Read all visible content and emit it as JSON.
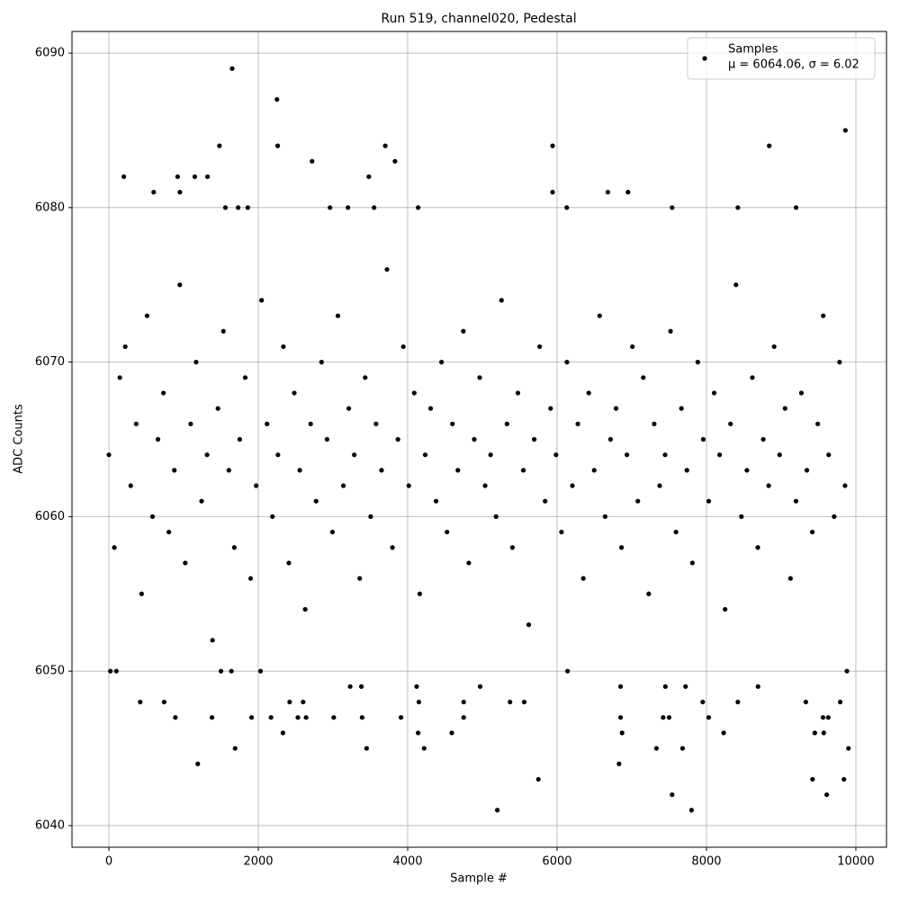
{
  "chart_data": {
    "type": "scatter",
    "title": "Run 519, channel020, Pedestal",
    "xlabel": "Sample #",
    "ylabel": "ADC Counts",
    "xlim": [
      -494,
      10410
    ],
    "ylim": [
      6038.6,
      6091.4
    ],
    "xticks": [
      0,
      2000,
      4000,
      6000,
      8000,
      10000
    ],
    "yticks": [
      6040,
      6050,
      6060,
      6070,
      6080,
      6090
    ],
    "grid": true,
    "legend": "upper right",
    "annotation": "μ = 6064.06, σ = 6.02",
    "series": [
      {
        "name": "Samples",
        "color": "#000000",
        "x": [
          1650,
          2250,
          1480,
          2260,
          3700,
          5940,
          8840,
          9860,
          2720,
          3830,
          200,
          920,
          1150,
          1320,
          3480,
          600,
          950,
          5940,
          6680,
          6950,
          4140,
          1560,
          1730,
          1860,
          2960,
          3200,
          3550,
          6130,
          7540,
          8420,
          9200,
          5200,
          7800,
          5750,
          9420,
          9840,
          1190,
          6830,
          1690,
          3450,
          4220,
          7330,
          7680,
          9900,
          7540,
          9610,
          2330,
          4140,
          4590,
          8230,
          6870,
          9450,
          9570,
          890,
          1380,
          1910,
          2170,
          2530,
          2640,
          3010,
          3390,
          3910,
          4750,
          6850,
          7420,
          7500,
          8030,
          9560,
          9630,
          20,
          100,
          420,
          740,
          1500,
          1640,
          2030,
          2420,
          2600,
          3230,
          3380,
          4120,
          4150,
          4750,
          4970,
          5370,
          5560,
          6140,
          6850,
          7450,
          7720,
          7950,
          8420,
          8690,
          9330,
          9790,
          9880,
          0,
          73,
          146,
          219,
          292,
          365,
          438,
          511,
          584,
          657,
          730,
          803,
          876,
          949,
          1022,
          1095,
          1168,
          1241,
          1314,
          1387,
          1460,
          1533,
          1606,
          1679,
          1752,
          1825,
          1898,
          1971,
          2044,
          2117,
          2190,
          2263,
          2336,
          2409,
          2482,
          2555,
          2628,
          2701,
          2774,
          2847,
          2920,
          2993,
          3066,
          3139,
          3212,
          3285,
          3358,
          3431,
          3504,
          3577,
          3650,
          3723,
          3796,
          3869,
          3942,
          4015,
          4088,
          4161,
          4234,
          4307,
          4380,
          4453,
          4526,
          4599,
          4672,
          4745,
          4818,
          4891,
          4964,
          5037,
          5110,
          5183,
          5256,
          5329,
          5402,
          5475,
          5548,
          5621,
          5694,
          5767,
          5840,
          5913,
          5986,
          6059,
          6132,
          6205,
          6278,
          6351,
          6424,
          6497,
          6570,
          6643,
          6716,
          6789,
          6862,
          6935,
          7008,
          7081,
          7154,
          7227,
          7300,
          7373,
          7446,
          7519,
          7592,
          7665,
          7738,
          7811,
          7884,
          7957,
          8030,
          8103,
          8176,
          8249,
          8322,
          8395,
          8468,
          8541,
          8614,
          8687,
          8760,
          8833,
          8906,
          8979,
          9052,
          9125,
          9198,
          9271,
          9344,
          9417,
          9490,
          9563,
          9636,
          9709,
          9782,
          9855
        ],
        "values": [
          6089,
          6087,
          6084,
          6084,
          6084,
          6084,
          6084,
          6085,
          6083,
          6083,
          6082,
          6082,
          6082,
          6082,
          6082,
          6081,
          6081,
          6081,
          6081,
          6081,
          6080,
          6080,
          6080,
          6080,
          6080,
          6080,
          6080,
          6080,
          6080,
          6080,
          6080,
          6041,
          6041,
          6043,
          6043,
          6043,
          6044,
          6044,
          6045,
          6045,
          6045,
          6045,
          6045,
          6045,
          6042,
          6042,
          6046,
          6046,
          6046,
          6046,
          6046,
          6046,
          6046,
          6047,
          6047,
          6047,
          6047,
          6047,
          6047,
          6047,
          6047,
          6047,
          6047,
          6047,
          6047,
          6047,
          6047,
          6047,
          6047,
          6050,
          6050,
          6048,
          6048,
          6050,
          6050,
          6050,
          6048,
          6048,
          6049,
          6049,
          6049,
          6048,
          6048,
          6049,
          6048,
          6048,
          6050,
          6049,
          6049,
          6049,
          6048,
          6048,
          6049,
          6048,
          6048,
          6050,
          6064,
          6058,
          6069,
          6071,
          6062,
          6066,
          6055,
          6073,
          6060,
          6065,
          6068,
          6059,
          6063,
          6075,
          6057,
          6066,
          6070,
          6061,
          6064,
          6052,
          6067,
          6072,
          6063,
          6058,
          6065,
          6069,
          6056,
          6062,
          6074,
          6066,
          6060,
          6064,
          6071,
          6057,
          6068,
          6063,
          6054,
          6066,
          6061,
          6070,
          6065,
          6059,
          6073,
          6062,
          6067,
          6064,
          6056,
          6069,
          6060,
          6066,
          6063,
          6076,
          6058,
          6065,
          6071,
          6062,
          6068,
          6055,
          6064,
          6067,
          6061,
          6070,
          6059,
          6066,
          6063,
          6072,
          6057,
          6065,
          6069,
          6062,
          6064,
          6060,
          6074,
          6066,
          6058,
          6068,
          6063,
          6053,
          6065,
          6071,
          6061,
          6067,
          6064,
          6059,
          6070,
          6062,
          6066,
          6056,
          6068,
          6063,
          6073,
          6060,
          6065,
          6067,
          6058,
          6064,
          6071,
          6061,
          6069,
          6055,
          6066,
          6062,
          6064,
          6072,
          6059,
          6067,
          6063,
          6057,
          6070,
          6065,
          6061,
          6068,
          6064,
          6054,
          6066,
          6075,
          6060,
          6063,
          6069,
          6058,
          6065,
          6062,
          6071,
          6064,
          6067,
          6056,
          6061,
          6068,
          6063,
          6059,
          6066,
          6073,
          6064,
          6060,
          6070,
          6062
        ]
      }
    ]
  }
}
